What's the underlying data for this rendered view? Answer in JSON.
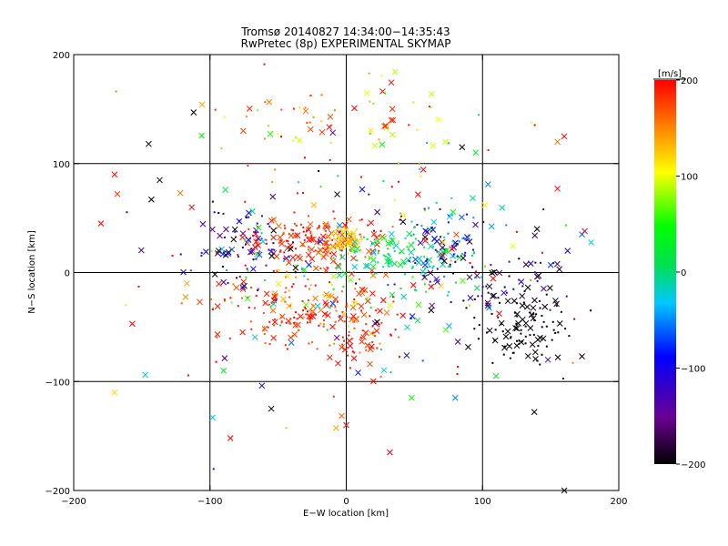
{
  "chart_data": {
    "type": "scatter",
    "title": "Tromsø 20140827 14:34:00−14:35:43",
    "subtitle": "RwPretec (8p) EXPERIMENTAL SKYMAP",
    "xlabel": "E−W location [km]",
    "ylabel": "N−S location [km]",
    "xlim": [
      -200,
      200
    ],
    "ylim": [
      -200,
      200
    ],
    "xticks": [
      "−200",
      "−100",
      "0",
      "100",
      "200"
    ],
    "yticks": [
      "200",
      "100",
      "0",
      "−100",
      "−200"
    ],
    "grid_lines": [
      -100,
      0,
      100
    ],
    "grid": true,
    "colorbar": {
      "label": "[m/s]",
      "range": [
        -200,
        200
      ],
      "ticks": [
        "200",
        "100",
        "0",
        "−100",
        "−200"
      ],
      "colormap": "rainbow (black → purple → blue → cyan → green → yellow → red)"
    },
    "marker_symbols": [
      "x",
      "dot"
    ],
    "clusters": [
      {
        "cx": -25,
        "cy": 30,
        "sx": 25,
        "sy": 12,
        "n": 160,
        "v": 185,
        "sv": 15
      },
      {
        "cx": -40,
        "cy": -35,
        "sx": 30,
        "sy": 18,
        "n": 140,
        "v": 180,
        "sv": 20
      },
      {
        "cx": 5,
        "cy": -50,
        "sx": 15,
        "sy": 25,
        "n": 90,
        "v": 180,
        "sv": 20
      },
      {
        "cx": 0,
        "cy": 30,
        "sx": 6,
        "sy": 5,
        "n": 60,
        "v": 130,
        "sv": 20
      },
      {
        "cx": 40,
        "cy": 15,
        "sx": 25,
        "sy": 15,
        "n": 110,
        "v": 10,
        "sv": 25
      },
      {
        "cx": 70,
        "cy": 25,
        "sx": 15,
        "sy": 18,
        "n": 80,
        "v": -80,
        "sv": 60
      },
      {
        "cx": 130,
        "cy": -50,
        "sx": 18,
        "sy": 20,
        "n": 110,
        "v": -200,
        "sv": 5
      },
      {
        "cx": -70,
        "cy": 20,
        "sx": 20,
        "sy": 18,
        "n": 80,
        "v": -130,
        "sv": 60
      },
      {
        "cx": -30,
        "cy": 140,
        "sx": 45,
        "sy": 25,
        "n": 50,
        "v": 150,
        "sv": 50
      },
      {
        "cx": 40,
        "cy": 140,
        "sx": 35,
        "sy": 25,
        "n": 30,
        "v": 140,
        "sv": 60
      },
      {
        "cx": 0,
        "cy": 0,
        "sx": 80,
        "sy": 60,
        "n": 200,
        "v": 60,
        "sv": 140
      },
      {
        "cx": 110,
        "cy": -5,
        "sx": 25,
        "sy": 20,
        "n": 60,
        "v": -160,
        "sv": 40
      }
    ],
    "scattered_points": [
      {
        "x": -170,
        "y": 90,
        "v": 200
      },
      {
        "x": -168,
        "y": 72,
        "v": 180
      },
      {
        "x": -143,
        "y": 67,
        "v": -200
      },
      {
        "x": -112,
        "y": 147,
        "v": -200
      },
      {
        "x": -145,
        "y": 118,
        "v": -200
      },
      {
        "x": -157,
        "y": -47,
        "v": 200
      },
      {
        "x": -170,
        "y": -110,
        "v": 120
      },
      {
        "x": -98,
        "y": -133,
        "v": -30
      },
      {
        "x": -90,
        "y": -90,
        "v": 20
      },
      {
        "x": -85,
        "y": -152,
        "v": 200
      },
      {
        "x": -55,
        "y": -125,
        "v": -200
      },
      {
        "x": 138,
        "y": -128,
        "v": -200
      },
      {
        "x": 155,
        "y": 77,
        "v": 200
      },
      {
        "x": 175,
        "y": 38,
        "v": 200
      },
      {
        "x": 173,
        "y": 35,
        "v": -60
      },
      {
        "x": 160,
        "y": 125,
        "v": 200
      },
      {
        "x": 155,
        "y": 120,
        "v": 160
      },
      {
        "x": 140,
        "y": 40,
        "v": -200
      },
      {
        "x": 148,
        "y": -80,
        "v": -140
      },
      {
        "x": 95,
        "y": 110,
        "v": 30
      },
      {
        "x": 85,
        "y": 115,
        "v": -200
      },
      {
        "x": 48,
        "y": -115,
        "v": 50
      },
      {
        "x": 80,
        "y": -115,
        "v": -50
      },
      {
        "x": 110,
        "y": -95,
        "v": 30
      },
      {
        "x": 0,
        "y": -140,
        "v": 200
      },
      {
        "x": 32,
        "y": -165,
        "v": 200
      },
      {
        "x": 160,
        "y": -200,
        "v": -200
      },
      {
        "x": -180,
        "y": 45,
        "v": 200
      }
    ]
  }
}
